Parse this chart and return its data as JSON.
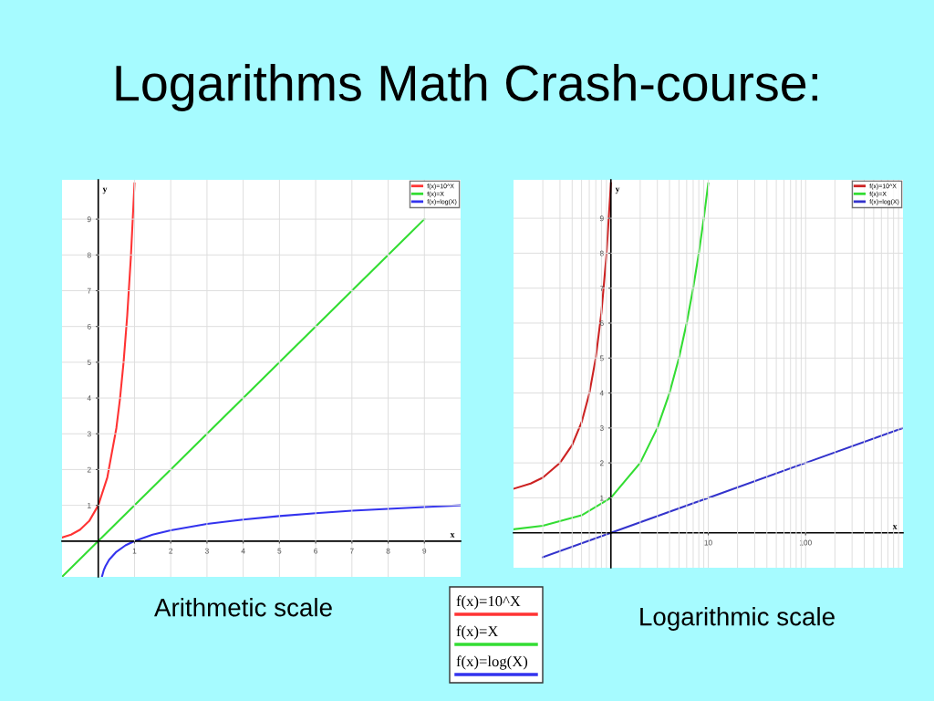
{
  "chart_data": [
    {
      "type": "line",
      "title": "Logarithms Math Crash-course:",
      "xlabel": "x",
      "ylabel": "y",
      "annotations": [
        "Arithmetic scale"
      ],
      "xlim": [
        -1,
        10
      ],
      "ylim": [
        -1,
        10.1
      ],
      "xticks": [
        1,
        2,
        3,
        4,
        5,
        6,
        7,
        8,
        9
      ],
      "yticks": [
        1,
        2,
        3,
        4,
        5,
        6,
        7,
        8,
        9
      ],
      "grid": true,
      "legend": "top right",
      "series": [
        {
          "name": "f(x)=10^X",
          "color": "#ff3333",
          "x": [
            -1,
            -0.75,
            -0.5,
            -0.25,
            0,
            0.25,
            0.5,
            0.6,
            0.7,
            0.8,
            0.9,
            1.0
          ],
          "values": [
            0.1,
            0.18,
            0.32,
            0.56,
            1,
            1.78,
            3.16,
            3.98,
            5.01,
            6.31,
            7.94,
            10
          ]
        },
        {
          "name": "f(x)=X",
          "color": "#33dd33",
          "x": [
            -1,
            0,
            9
          ],
          "values": [
            -1,
            0,
            9
          ]
        },
        {
          "name": "f(x)=log(X)",
          "color": "#3333ee",
          "x": [
            0.1,
            0.15,
            0.2,
            0.3,
            0.5,
            0.75,
            1,
            1.5,
            2,
            3,
            4,
            5,
            6,
            7,
            8,
            9,
            10
          ],
          "values": [
            -1,
            -0.82,
            -0.7,
            -0.52,
            -0.3,
            -0.12,
            0,
            0.18,
            0.3,
            0.48,
            0.6,
            0.7,
            0.78,
            0.85,
            0.9,
            0.95,
            1
          ]
        }
      ]
    },
    {
      "type": "line",
      "xlabel": "x",
      "ylabel": "y",
      "annotations": [
        "Logarithmic scale"
      ],
      "log": "x",
      "xlim": [
        0.1,
        1000
      ],
      "ylim": [
        -1,
        10.1
      ],
      "xticks": [
        10,
        100
      ],
      "yticks": [
        1,
        2,
        3,
        4,
        5,
        6,
        7,
        8,
        9
      ],
      "grid": true,
      "legend": "top right",
      "series": [
        {
          "name": "f(x)=10^X",
          "color": "#cc2222",
          "x": [
            0.1,
            0.15,
            0.2,
            0.3,
            0.4,
            0.5,
            0.6,
            0.7,
            0.8,
            0.9,
            1
          ],
          "values": [
            1.26,
            1.41,
            1.58,
            2,
            2.51,
            3.16,
            3.98,
            5.01,
            6.31,
            7.94,
            10
          ]
        },
        {
          "name": "f(x)=X",
          "color": "#33dd33",
          "x": [
            0.1,
            0.2,
            0.5,
            1,
            2,
            3,
            4,
            5,
            6,
            7,
            8,
            9,
            10
          ],
          "values": [
            0.1,
            0.2,
            0.5,
            1,
            2,
            3,
            4,
            5,
            6,
            7,
            8,
            9,
            10
          ]
        },
        {
          "name": "f(x)=log(X)",
          "color": "#3333cc",
          "x": [
            0.2,
            1,
            10,
            100,
            1000
          ],
          "values": [
            -0.7,
            0,
            1,
            2,
            3
          ]
        }
      ]
    }
  ]
}
